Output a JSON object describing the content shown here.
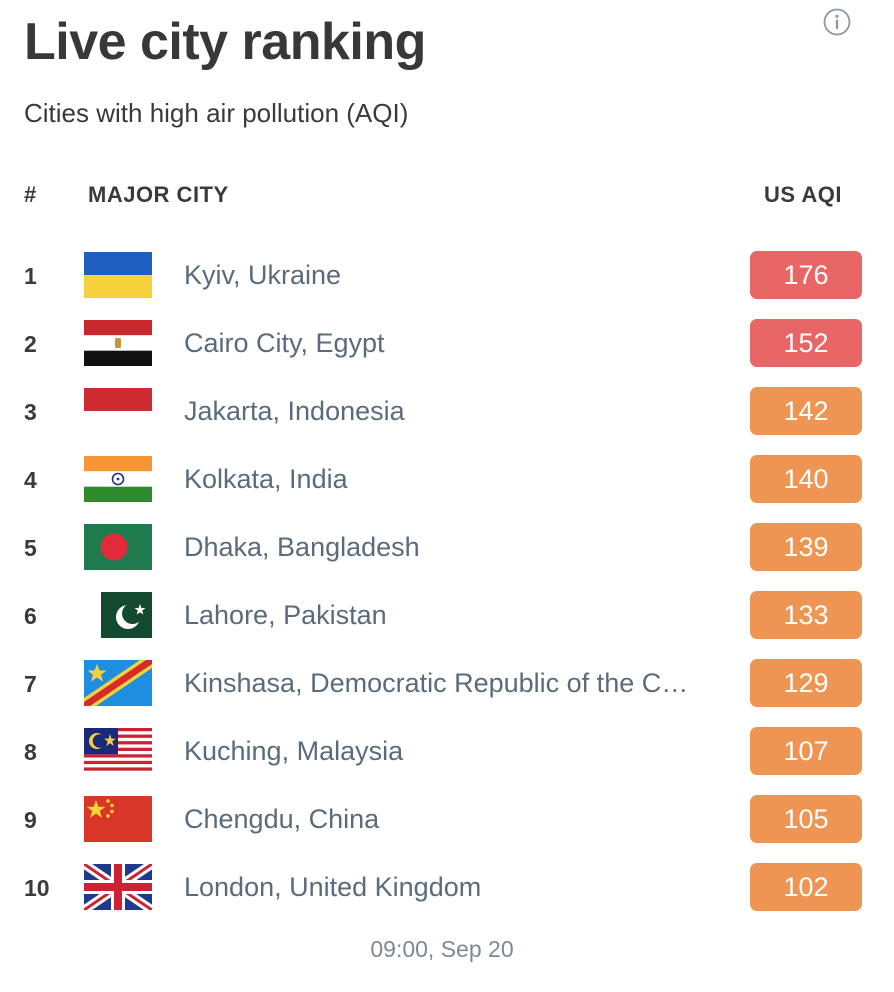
{
  "header": {
    "title": "Live city ranking",
    "subtitle": "Cities with high air pollution (AQI)",
    "info_icon": "info-circle-icon"
  },
  "table": {
    "col_rank": "#",
    "col_city": "MAJOR CITY",
    "col_aqi": "US AQI",
    "rows": [
      {
        "rank": "1",
        "city": "Kyiv, Ukraine",
        "aqi": "176",
        "flag": "ukraine-flag-icon",
        "level": "unhealthy"
      },
      {
        "rank": "2",
        "city": "Cairo City, Egypt",
        "aqi": "152",
        "flag": "egypt-flag-icon",
        "level": "unhealthy"
      },
      {
        "rank": "3",
        "city": "Jakarta, Indonesia",
        "aqi": "142",
        "flag": "indonesia-flag-icon",
        "level": "unhealthy-sensitive"
      },
      {
        "rank": "4",
        "city": "Kolkata, India",
        "aqi": "140",
        "flag": "india-flag-icon",
        "level": "unhealthy-sensitive"
      },
      {
        "rank": "5",
        "city": "Dhaka, Bangladesh",
        "aqi": "139",
        "flag": "bangladesh-flag-icon",
        "level": "unhealthy-sensitive"
      },
      {
        "rank": "6",
        "city": "Lahore, Pakistan",
        "aqi": "133",
        "flag": "pakistan-flag-icon",
        "level": "unhealthy-sensitive"
      },
      {
        "rank": "7",
        "city": "Kinshasa, Democratic Republic of the C…",
        "aqi": "129",
        "flag": "dr-congo-flag-icon",
        "level": "unhealthy-sensitive"
      },
      {
        "rank": "8",
        "city": "Kuching, Malaysia",
        "aqi": "107",
        "flag": "malaysia-flag-icon",
        "level": "unhealthy-sensitive"
      },
      {
        "rank": "9",
        "city": "Chengdu, China",
        "aqi": "105",
        "flag": "china-flag-icon",
        "level": "unhealthy-sensitive"
      },
      {
        "rank": "10",
        "city": "London, United Kingdom",
        "aqi": "102",
        "flag": "uk-flag-icon",
        "level": "unhealthy-sensitive"
      }
    ]
  },
  "timestamp": "09:00, Sep 20",
  "colors": {
    "unhealthy": "#e86665",
    "unhealthy-sensitive": "#ee9554"
  }
}
